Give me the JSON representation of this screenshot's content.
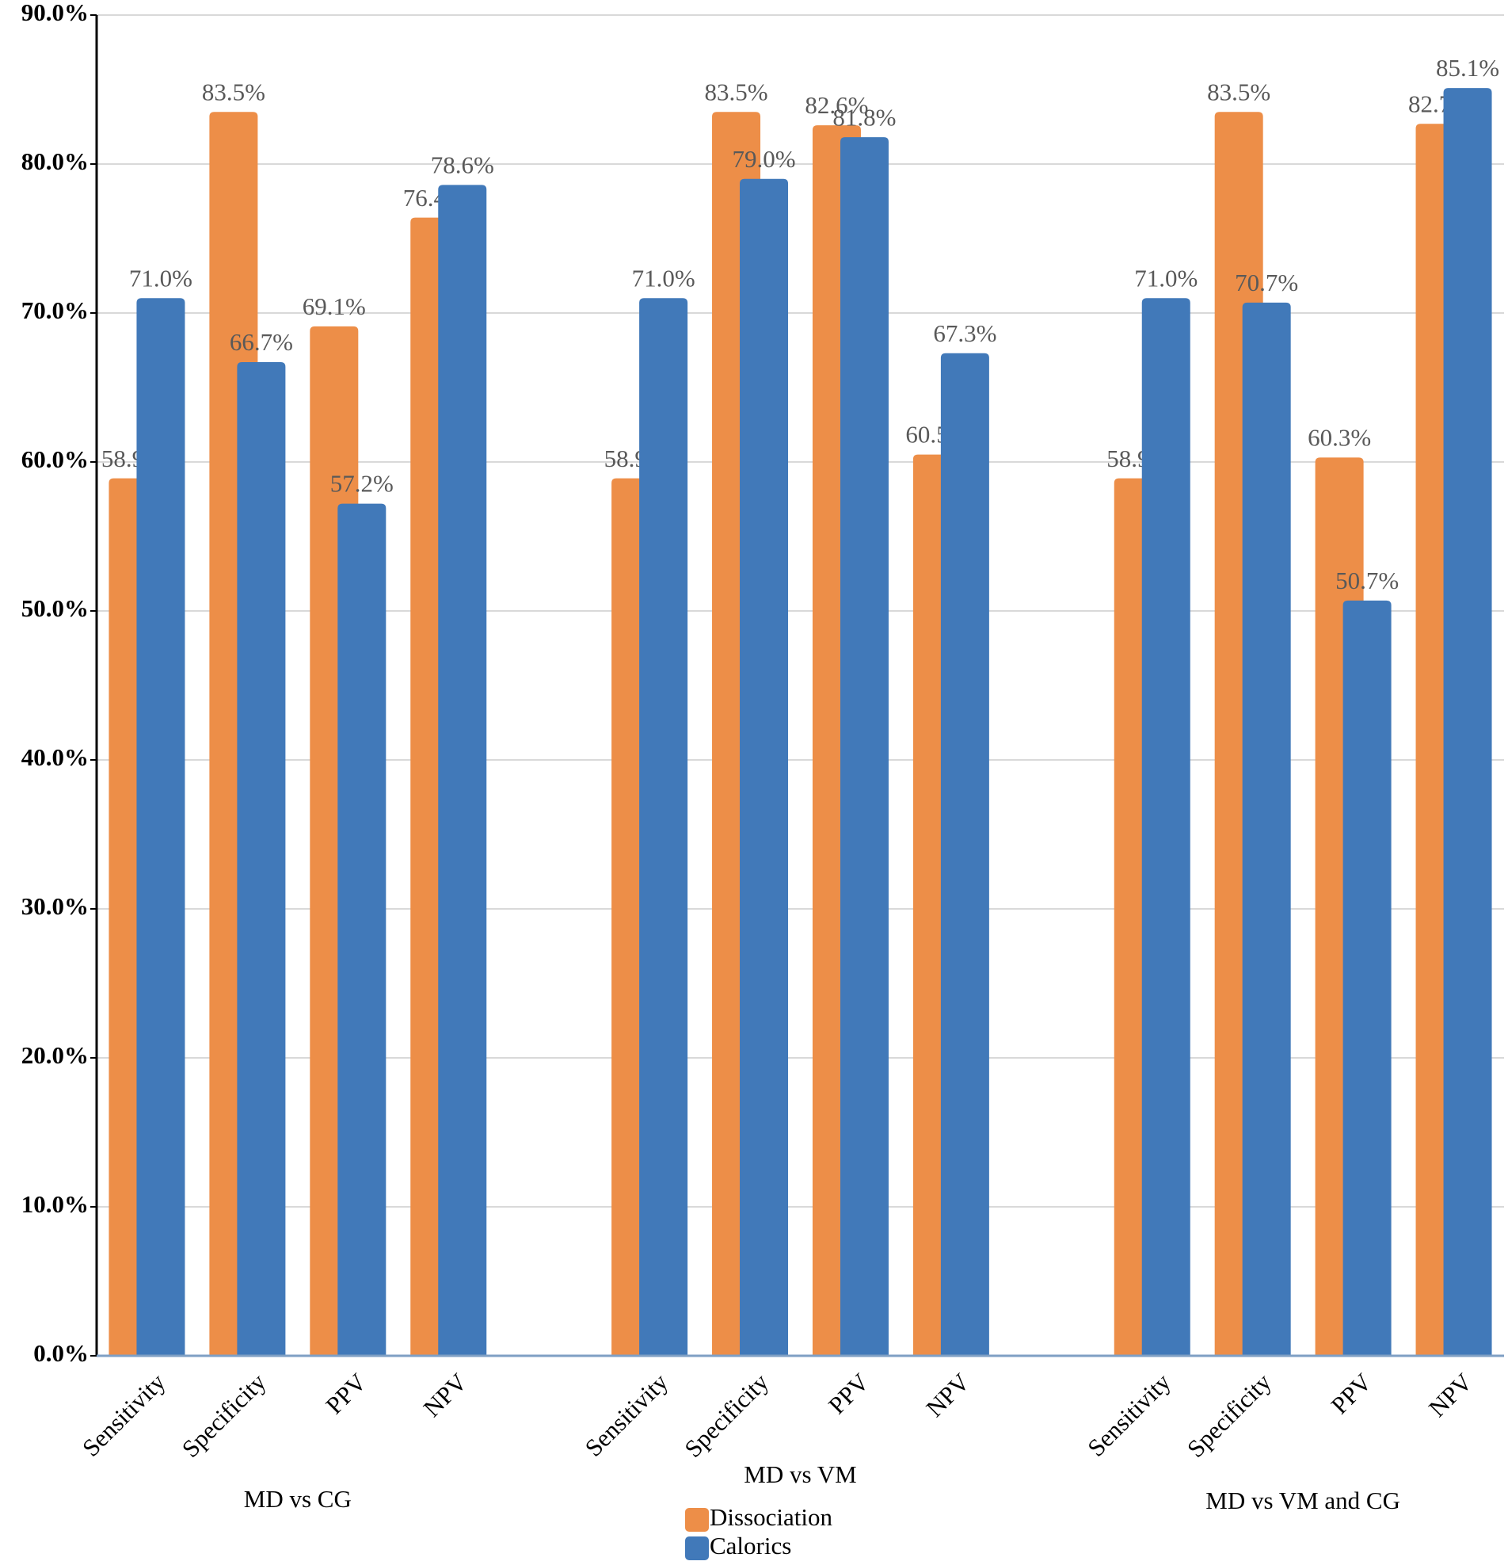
{
  "chart_data": {
    "type": "bar",
    "categories": [
      "Sensitivity",
      "Specificity",
      "PPV",
      "NPV",
      "Sensitivity",
      "Specificity",
      "PPV",
      "NPV",
      "Sensitivity",
      "Specificity",
      "PPV",
      "NPV"
    ],
    "group_labels": [
      "MD vs CG",
      "MD vs VM",
      "MD vs VM and CG"
    ],
    "series": [
      {
        "name": "Dissociation",
        "color": "#ED8E48",
        "values": [
          58.9,
          83.5,
          69.1,
          76.4,
          58.9,
          83.5,
          82.6,
          60.5,
          58.9,
          83.5,
          60.3,
          82.7
        ],
        "value_labels": [
          "58.9%",
          "83.5%",
          "69.1%",
          "76.4%",
          "58.9%",
          "83.5%",
          "82.6%",
          "60.5%",
          "58.9%",
          "83.5%",
          "60.3%",
          "82.7%"
        ]
      },
      {
        "name": "Calorics",
        "color": "#4179B9",
        "values": [
          71.0,
          66.7,
          57.2,
          78.6,
          71.0,
          79.0,
          81.8,
          67.3,
          71.0,
          70.7,
          50.7,
          85.1
        ],
        "value_labels": [
          "71.0%",
          "66.7%",
          "57.2%",
          "78.6%",
          "71.0%",
          "79.0%",
          "81.8%",
          "67.3%",
          "71.0%",
          "70.7%",
          "50.7%",
          "85.1%"
        ]
      }
    ],
    "ylim": [
      0,
      90
    ],
    "yticks": [
      {
        "value": 0,
        "label": "0.0%"
      },
      {
        "value": 10,
        "label": "10.0%"
      },
      {
        "value": 20,
        "label": "20.0%"
      },
      {
        "value": 30,
        "label": "30.0%"
      },
      {
        "value": 40,
        "label": "40.0%"
      },
      {
        "value": 50,
        "label": "50.0%"
      },
      {
        "value": 60,
        "label": "60.0%"
      },
      {
        "value": 70,
        "label": "70.0%"
      },
      {
        "value": 80,
        "label": "80.0%"
      },
      {
        "value": 90,
        "label": "90.0%"
      }
    ],
    "grid": true,
    "legend": "bottom"
  }
}
